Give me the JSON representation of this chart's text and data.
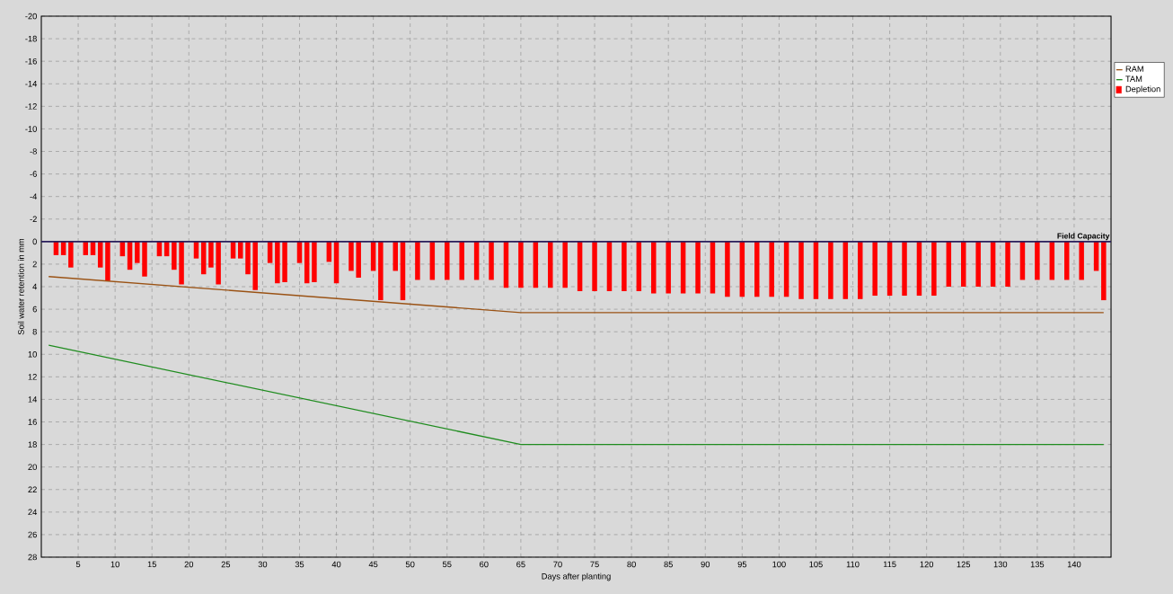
{
  "chart_data": {
    "type": "bar",
    "xlabel": "Days after planting",
    "ylabel": "Soil water retention in mm",
    "series": [
      {
        "name": "RAM",
        "type": "line",
        "color": "#9a5214",
        "x": [
          1,
          65,
          144
        ],
        "values": [
          3.1,
          6.3,
          6.3
        ]
      },
      {
        "name": "TAM",
        "type": "line",
        "color": "#1f8c1f",
        "x": [
          1,
          65,
          144
        ],
        "values": [
          9.2,
          18,
          18
        ]
      },
      {
        "name": "Depletion",
        "color": "#ff0000",
        "x": [
          2,
          3,
          4,
          6,
          7,
          8,
          9,
          11,
          12,
          13,
          14,
          16,
          17,
          18,
          19,
          21,
          22,
          23,
          24,
          26,
          27,
          28,
          29,
          31,
          32,
          33,
          35,
          36,
          37,
          39,
          40,
          42,
          43,
          45,
          46,
          48,
          49,
          51,
          53,
          55,
          57,
          59,
          61,
          63,
          65,
          67,
          69,
          71,
          73,
          75,
          77,
          79,
          81,
          83,
          85,
          87,
          89,
          91,
          93,
          95,
          97,
          99,
          101,
          103,
          105,
          107,
          109,
          111,
          113,
          115,
          117,
          119,
          121,
          123,
          125,
          127,
          129,
          131,
          133,
          135,
          137,
          139,
          141,
          143,
          144
        ],
        "values": [
          1.2,
          1.2,
          2.3,
          1.2,
          1.2,
          2.3,
          3.5,
          1.3,
          2.5,
          1.9,
          3.1,
          1.3,
          1.3,
          2.5,
          3.8,
          1.5,
          2.9,
          2.3,
          3.8,
          1.5,
          1.5,
          2.9,
          4.3,
          1.9,
          3.7,
          3.6,
          1.9,
          3.7,
          3.6,
          1.8,
          3.7,
          2.6,
          3.2,
          2.6,
          5.2,
          2.6,
          5.2,
          3.4,
          3.4,
          3.4,
          3.4,
          3.4,
          3.4,
          4.1,
          4.1,
          4.1,
          4.1,
          4.1,
          4.4,
          4.4,
          4.4,
          4.4,
          4.4,
          4.6,
          4.6,
          4.6,
          4.6,
          4.6,
          4.9,
          4.9,
          4.9,
          4.9,
          4.9,
          5.1,
          5.1,
          5.1,
          5.1,
          5.1,
          4.8,
          4.8,
          4.8,
          4.8,
          4.8,
          4.0,
          4.0,
          4.0,
          4.0,
          4.0,
          3.4,
          3.4,
          3.4,
          3.4,
          3.4,
          2.6,
          5.2
        ]
      }
    ],
    "xlim": [
      0,
      145
    ],
    "xticks": [
      5,
      10,
      15,
      20,
      25,
      30,
      35,
      40,
      45,
      50,
      55,
      60,
      65,
      70,
      75,
      80,
      85,
      90,
      95,
      100,
      105,
      110,
      115,
      120,
      125,
      130,
      135,
      140
    ],
    "ylim": [
      28,
      -20
    ],
    "yticks": [
      -20,
      -18,
      -16,
      -14,
      -12,
      -10,
      -8,
      -6,
      -4,
      -2,
      0,
      2,
      4,
      6,
      8,
      10,
      12,
      14,
      16,
      18,
      20,
      22,
      24,
      26,
      28
    ],
    "ref_lines": [
      {
        "axis": "y",
        "value": 0,
        "label": "Field Capacity",
        "color": "#2a1f5c"
      }
    ],
    "grid": true,
    "legend": "top right",
    "marker": "none",
    "line_style": "solid"
  }
}
